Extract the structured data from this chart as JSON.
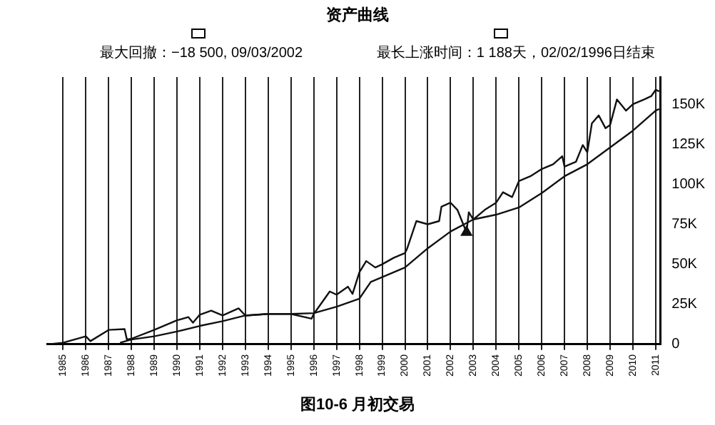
{
  "chart_data": {
    "type": "line",
    "title": "资产曲线",
    "annotations": [
      "最大回撤：−18 500, 09/03/2002",
      "最长上涨时间：1 188天，02/02/1996日结束",
      "图10-6 月初交易"
    ],
    "xlim": [
      1984.3,
      2011.2
    ],
    "xticks": [
      1985,
      1986,
      1987,
      1988,
      1989,
      1990,
      1991,
      1992,
      1993,
      1994,
      1995,
      1996,
      1997,
      1998,
      1999,
      2000,
      2001,
      2002,
      2003,
      2004,
      2005,
      2006,
      2007,
      2008,
      2009,
      2010,
      2011
    ],
    "ylim": [
      0,
      167000
    ],
    "yticks": [
      {
        "value": 0,
        "label": "0"
      },
      {
        "value": 25000,
        "label": "25K"
      },
      {
        "value": 50000,
        "label": "50K"
      },
      {
        "value": 75000,
        "label": "75K"
      },
      {
        "value": 100000,
        "label": "100K"
      },
      {
        "value": 125000,
        "label": "125K"
      },
      {
        "value": 150000,
        "label": "150K"
      }
    ],
    "grid": "x",
    "legend": false,
    "marker": "none",
    "line_style": "solid",
    "series": [
      {
        "type": "line",
        "color": "#111111",
        "x": [
          1984.3,
          1985,
          1986,
          1986.2,
          1987,
          1987.7,
          1987.8,
          1988,
          1989,
          1990,
          1990.5,
          1990.7,
          1991,
          1991.5,
          1992,
          1992.7,
          1993,
          1994,
          1995,
          1995.9,
          1996,
          1996.7,
          1997,
          1997.5,
          1997.7,
          1998,
          1998.3,
          1998.7,
          1999,
          1999.5,
          2000,
          2000.1,
          2000.5,
          2001,
          2001.5,
          2001.6,
          2002,
          2002.3,
          2002.7,
          2002.8,
          2003,
          2003.5,
          2004,
          2004.3,
          2004.7,
          2005,
          2005.5,
          2006,
          2006.5,
          2006.9,
          2007,
          2007.5,
          2007.8,
          2008,
          2008.2,
          2008.5,
          2008.8,
          2009,
          2009.3,
          2009.7,
          2010,
          2010.5,
          2010.8,
          2011,
          2011.15
        ],
        "values": [
          0,
          1000,
          5000,
          2000,
          9000,
          9500,
          3000,
          3500,
          9000,
          15000,
          17000,
          13500,
          18500,
          21000,
          18000,
          22500,
          18000,
          19000,
          19000,
          16000,
          19000,
          33000,
          31000,
          36000,
          31500,
          45000,
          52000,
          48000,
          50000,
          54000,
          57000,
          60000,
          77000,
          75000,
          77000,
          86000,
          88500,
          84000,
          70000,
          82500,
          78000,
          84000,
          88500,
          95000,
          92000,
          102000,
          105000,
          109500,
          112500,
          117500,
          111000,
          114000,
          124500,
          120000,
          138000,
          143000,
          135000,
          137000,
          153000,
          146000,
          150000,
          153000,
          155000,
          159000,
          158000
        ]
      },
      {
        "type": "line",
        "color": "#111111",
        "x": [
          1987.5,
          1988,
          1989,
          1990,
          1991,
          1992,
          1993,
          1994,
          1995,
          1996,
          1997,
          1998,
          1998.5,
          1999,
          2000,
          2001,
          2002,
          2003,
          2004,
          2005,
          2006,
          2007,
          2008,
          2009,
          2010,
          2011,
          2011.15
        ],
        "values": [
          1000,
          3000,
          5000,
          8000,
          11500,
          14500,
          18000,
          19000,
          19000,
          19500,
          23500,
          28500,
          39000,
          42000,
          48000,
          60000,
          70500,
          78000,
          81000,
          85500,
          94500,
          105000,
          112500,
          123000,
          133500,
          146000,
          147000
        ]
      },
      {
        "type": "scatter",
        "color": "#111111",
        "marker": "triangle",
        "x": [
          2002.7
        ],
        "values": [
          70000
        ]
      }
    ]
  }
}
